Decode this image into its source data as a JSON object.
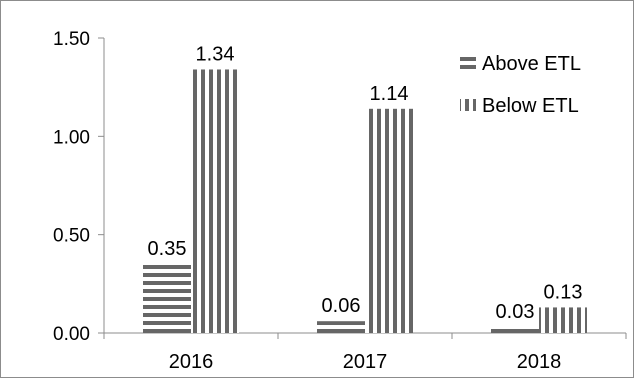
{
  "chart_data": {
    "type": "bar",
    "categories": [
      "2016",
      "2017",
      "2018"
    ],
    "series": [
      {
        "name": "Above ETL",
        "values": [
          0.35,
          0.06,
          0.03
        ],
        "pattern": "horizontal-stripes",
        "color": "#666666"
      },
      {
        "name": "Below ETL",
        "values": [
          1.34,
          1.14,
          0.13
        ],
        "pattern": "vertical-stripes",
        "color": "#666666"
      }
    ],
    "data_labels": [
      [
        "0.35",
        "0.06",
        "0.03"
      ],
      [
        "1.34",
        "1.14",
        "0.13"
      ]
    ],
    "ylim": [
      0,
      1.5
    ],
    "yticks": [
      "0.00",
      "0.50",
      "1.00",
      "1.50"
    ],
    "title": "",
    "xlabel": "",
    "ylabel": "",
    "grid": false,
    "legend_position": "top-right"
  }
}
